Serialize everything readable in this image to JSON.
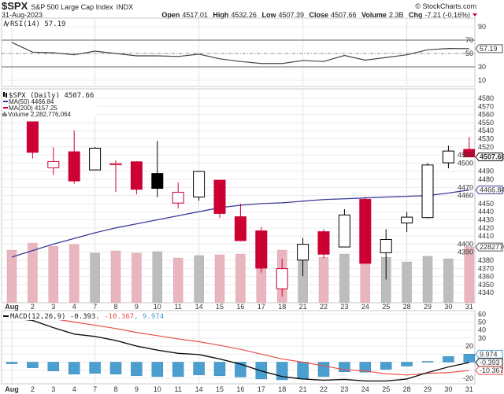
{
  "header": {
    "symbol": "$SPX",
    "name": "S&P 500 Large Cap Index",
    "exchange": "INDX",
    "credit": "© StockCharts.com",
    "date": "31-Aug-2023",
    "quote": {
      "open_label": "Open",
      "open": "4517.01",
      "high_label": "High",
      "high": "4532.26",
      "low_label": "Low",
      "low": "4507.39",
      "close_label": "Close",
      "close": "4507.66",
      "volume_label": "Volume",
      "volume": "2.3B",
      "chg_label": "Chg",
      "chg": "-7.21 (-0.16%)",
      "chg_direction": "down"
    }
  },
  "colors": {
    "down": "#cc0033",
    "up": "#000000",
    "volume_down": "#e9b5be",
    "volume_up": "#bdbdbd",
    "ma50": "#3b3b9a",
    "ma200": "#cc0033",
    "macd": "#111111",
    "signal": "#e8504a",
    "histogram": "#4a9fd0"
  },
  "chart_data": [
    {
      "type": "line",
      "panel": "rsi",
      "legend": "RSI(14) 57.19",
      "last_value_label": "57.19",
      "categories": [
        "Aug",
        "2",
        "3",
        "4",
        "7",
        "8",
        "9",
        "10",
        "11",
        "14",
        "15",
        "16",
        "17",
        "18",
        "21",
        "22",
        "23",
        "24",
        "25",
        "28",
        "29",
        "30",
        "31"
      ],
      "values": [
        66.5,
        52,
        51,
        48,
        53.5,
        50,
        46.5,
        46.5,
        45.5,
        49,
        42,
        38,
        35,
        35,
        39.5,
        38,
        47,
        40,
        44,
        48,
        55.5,
        57.5,
        57.19
      ],
      "yticks": [
        "90",
        "70",
        "50",
        "30",
        "10"
      ],
      "ylim": [
        0,
        100
      ],
      "reference_lines": [
        70,
        50,
        30
      ],
      "grid": true
    },
    {
      "type": "candlestick",
      "panel": "price",
      "legend": {
        "price": "$SPX (Daily) 4507.66",
        "ma50": "MA(50) 4466.84",
        "ma200": "MA(200) 4157.25",
        "volume": "Volume 2,282,776,064"
      },
      "last_close_label": "4507.66",
      "ma50_label": "4466.84",
      "volume_label": "2282776",
      "categories": [
        "Aug",
        "2",
        "3",
        "4",
        "7",
        "8",
        "9",
        "10",
        "11",
        "14",
        "15",
        "16",
        "17",
        "18",
        "21",
        "22",
        "23",
        "24",
        "25",
        "28",
        "29",
        "30",
        "31"
      ],
      "ohlc": [
        [
          4578.83,
          4584.62,
          4567.53,
          4576.73
        ],
        [
          4550.93,
          4550.93,
          4505.75,
          4513.39
        ],
        [
          4494.27,
          4519.49,
          4485.54,
          4501.89
        ],
        [
          4513.96,
          4540.34,
          4474.55,
          4478.03
        ],
        [
          4491.58,
          4519.84,
          4491.15,
          4518.44
        ],
        [
          4498.03,
          4503.31,
          4464.39,
          4499.38
        ],
        [
          4501.57,
          4502.44,
          4461.33,
          4467.71
        ],
        [
          4487.16,
          4527.37,
          4457.92,
          4468.83
        ],
        [
          4450.69,
          4476.23,
          4443.98,
          4464.05
        ],
        [
          4458.13,
          4490.33,
          4453.44,
          4489.72
        ],
        [
          4478.87,
          4478.87,
          4432.19,
          4437.86
        ],
        [
          4433.79,
          4449.95,
          4403.55,
          4404.33
        ],
        [
          4416.32,
          4421.17,
          4364.83,
          4370.36
        ],
        [
          4344.88,
          4381.82,
          4335.31,
          4369.71
        ],
        [
          4380.28,
          4407.55,
          4360.3,
          4399.77
        ],
        [
          4415.33,
          4418.59,
          4382.77,
          4387.55
        ],
        [
          4396.44,
          4443.18,
          4396.44,
          4436.01
        ],
        [
          4455.16,
          4458.3,
          4375.55,
          4376.31
        ],
        [
          4389.38,
          4418.46,
          4356.29,
          4405.71
        ],
        [
          4426.03,
          4439.56,
          4414.98,
          4433.31
        ],
        [
          4432.75,
          4500.14,
          4431.68,
          4497.63
        ],
        [
          4500.34,
          4521.65,
          4493.59,
          4514.87
        ],
        [
          4517.01,
          4532.26,
          4507.39,
          4507.66
        ]
      ],
      "ma50": [
        4384,
        4392,
        4400,
        4407,
        4414,
        4420,
        4425,
        4430,
        4435,
        4440,
        4445,
        4448,
        4450,
        4451,
        4453,
        4455,
        4456,
        4457,
        4458,
        4459,
        4460,
        4463,
        4466.84
      ],
      "volume_billions": [
        2.15,
        2.44,
        2.31,
        2.38,
        2.03,
        2.12,
        2.03,
        2.09,
        1.83,
        1.93,
        1.96,
        1.99,
        2.3,
        2.15,
        2.03,
        1.86,
        1.99,
        2.2,
        1.86,
        1.67,
        1.9,
        1.8,
        2.28
      ],
      "yticks": [
        "4580",
        "4570",
        "4560",
        "4550",
        "4540",
        "4530",
        "4520",
        "4510",
        "4500",
        "4490",
        "4480",
        "4470",
        "4460",
        "4450",
        "4440",
        "4430",
        "4420",
        "4410",
        "4400",
        "4390",
        "4380",
        "4370",
        "4360",
        "4350",
        "4340"
      ],
      "ylim": [
        4333,
        4591
      ],
      "grid": true
    },
    {
      "type": "line",
      "panel": "macd",
      "legend_prefix": "MACD(12,26,9)",
      "legend_macd": "-0.393",
      "legend_signal": "-10.367",
      "legend_hist": "9.974",
      "categories": [
        "Aug",
        "2",
        "3",
        "4",
        "7",
        "8",
        "9",
        "10",
        "11",
        "14",
        "15",
        "16",
        "17",
        "18",
        "21",
        "22",
        "23",
        "24",
        "25",
        "28",
        "29",
        "30",
        "31"
      ],
      "series": [
        {
          "name": "MACD",
          "values": [
            55,
            52,
            43,
            35,
            32,
            27,
            20,
            15,
            11,
            9.5,
            4,
            -2.5,
            -11,
            -18,
            -21,
            -22.5,
            -21.5,
            -23.5,
            -23.5,
            -21,
            -13,
            -6,
            -0.393
          ]
        },
        {
          "name": "Signal",
          "values": [
            null,
            59,
            54,
            50,
            46,
            42,
            37,
            33,
            29,
            25.5,
            21,
            16,
            10,
            4,
            0,
            -4.5,
            -9.5,
            -11,
            -14.5,
            -16,
            -14,
            -13,
            -10.367
          ]
        },
        {
          "name": "Histogram",
          "values": [
            -2,
            -7,
            -11,
            -15,
            -14,
            -15,
            -17,
            -18,
            -18,
            -16,
            -17,
            -18.5,
            -21,
            -22,
            -21,
            -18,
            -12,
            -12.5,
            -9,
            -5,
            1,
            7,
            9.974
          ]
        }
      ],
      "yticks": [
        "60",
        "50",
        "40",
        "30",
        "20",
        "-20"
      ],
      "ylim": [
        -27,
        62
      ],
      "grid": true
    }
  ]
}
